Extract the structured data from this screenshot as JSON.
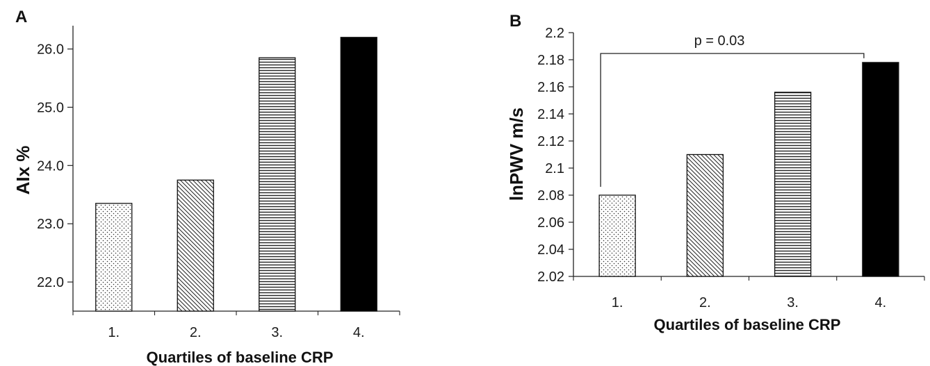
{
  "chart_data": [
    {
      "type": "bar",
      "panel_label": "A",
      "categories": [
        "1.",
        "2.",
        "3.",
        "4."
      ],
      "values": [
        23.35,
        23.75,
        25.85,
        26.2
      ],
      "patterns": [
        "dots",
        "diagonal",
        "horizontal",
        "solid"
      ],
      "xlabel": "Quartiles of baseline CRP",
      "ylabel": "AIx %",
      "ylim": [
        21.5,
        26.4
      ],
      "yticks": [
        "22.0",
        "23.0",
        "24.0",
        "25.0",
        "26.0"
      ],
      "ytick_values": [
        22,
        23,
        24,
        25,
        26
      ]
    },
    {
      "type": "bar",
      "panel_label": "B",
      "categories": [
        "1.",
        "2.",
        "3.",
        "4."
      ],
      "values": [
        2.08,
        2.11,
        2.156,
        2.178
      ],
      "patterns": [
        "dots",
        "diagonal",
        "horizontal",
        "solid"
      ],
      "xlabel": "Quartiles of baseline CRP",
      "ylabel": "lnPWV m/s",
      "ylim": [
        2.02,
        2.2
      ],
      "yticks": [
        "2.02",
        "2.04",
        "2.06",
        "2.08",
        "2.1",
        "2.12",
        "2.14",
        "2.16",
        "2.18",
        "2.2"
      ],
      "ytick_values": [
        2.02,
        2.04,
        2.06,
        2.08,
        2.1,
        2.12,
        2.14,
        2.16,
        2.18,
        2.2
      ],
      "annotation": {
        "text": "p = 0.03",
        "between": [
          1,
          4
        ]
      }
    }
  ]
}
